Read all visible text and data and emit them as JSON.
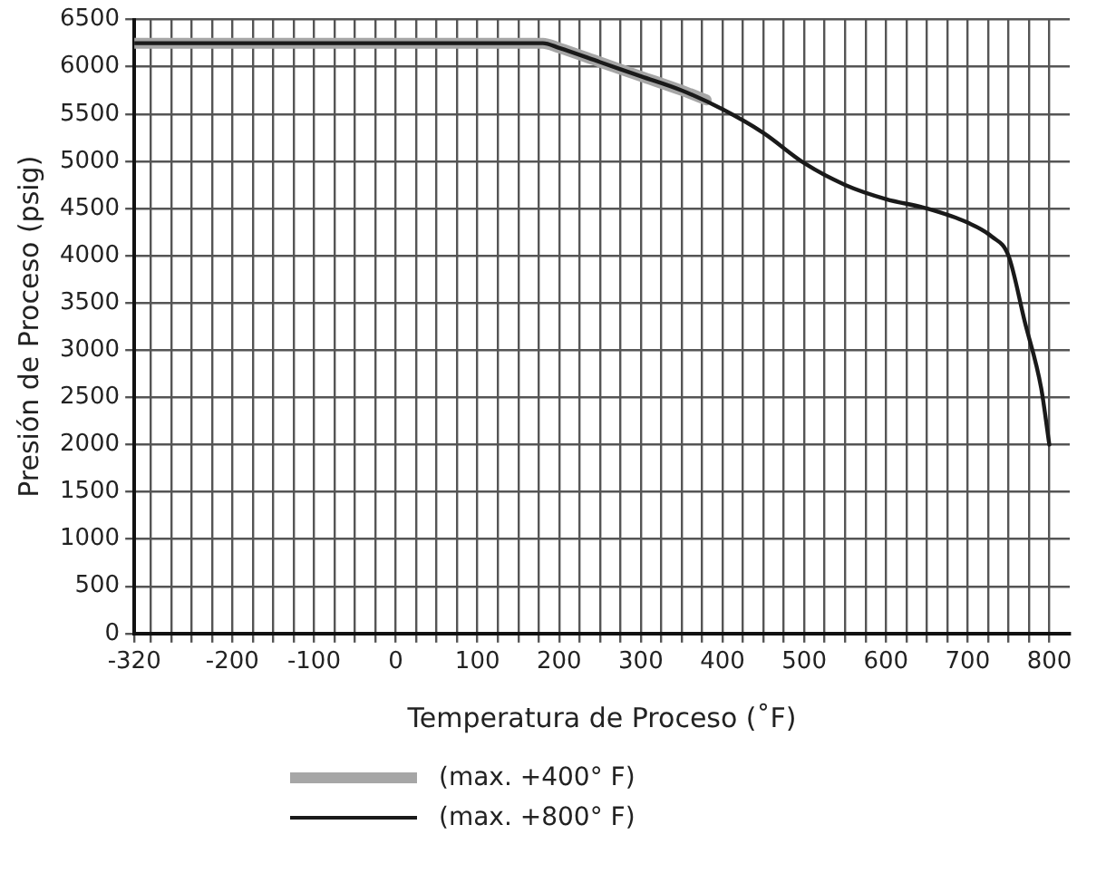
{
  "chart_data": {
    "type": "line",
    "xlabel": "Temperatura de Proceso (˚F)",
    "ylabel": "Presión de Proceso (psig)",
    "xlim": [
      -320,
      825
    ],
    "ylim": [
      0,
      6500
    ],
    "xticks": [
      {
        "value": -320,
        "label": "-320"
      },
      {
        "value": -300,
        "label": null
      },
      {
        "value": -275,
        "label": null
      },
      {
        "value": -250,
        "label": null
      },
      {
        "value": -225,
        "label": null
      },
      -200,
      {
        "value": -175,
        "label": null
      },
      {
        "value": -150,
        "label": null
      },
      {
        "value": -125,
        "label": null
      },
      -100,
      {
        "value": -75,
        "label": null
      },
      {
        "value": -50,
        "label": null
      },
      {
        "value": -25,
        "label": null
      },
      0,
      {
        "value": 25,
        "label": null
      },
      {
        "value": 50,
        "label": null
      },
      {
        "value": 75,
        "label": null
      },
      100,
      {
        "value": 125,
        "label": null
      },
      {
        "value": 150,
        "label": null
      },
      {
        "value": 175,
        "label": null
      },
      200,
      {
        "value": 225,
        "label": null
      },
      {
        "value": 250,
        "label": null
      },
      {
        "value": 275,
        "label": null
      },
      300,
      {
        "value": 325,
        "label": null
      },
      {
        "value": 350,
        "label": null
      },
      {
        "value": 375,
        "label": null
      },
      400,
      {
        "value": 425,
        "label": null
      },
      {
        "value": 450,
        "label": null
      },
      {
        "value": 475,
        "label": null
      },
      500,
      {
        "value": 525,
        "label": null
      },
      {
        "value": 550,
        "label": null
      },
      {
        "value": 575,
        "label": null
      },
      600,
      {
        "value": 625,
        "label": null
      },
      {
        "value": 650,
        "label": null
      },
      {
        "value": 675,
        "label": null
      },
      700,
      {
        "value": 725,
        "label": null
      },
      {
        "value": 750,
        "label": null
      },
      {
        "value": 775,
        "label": null
      },
      800
    ],
    "yticks": [
      0,
      500,
      1000,
      1500,
      2000,
      2500,
      3000,
      3500,
      4000,
      4500,
      5000,
      5500,
      6000,
      6500
    ],
    "grid": true,
    "legend": "bottom",
    "marker": "none",
    "series": [
      {
        "name": "(max. +400° F)",
        "color": "#a6a6a6",
        "x": [
          -320,
          180,
          200,
          250,
          300,
          350,
          380
        ],
        "values": [
          6250,
          6250,
          6200,
          6050,
          5900,
          5750,
          5650
        ]
      },
      {
        "name": "(max. +800° F)",
        "color": "#1a1a1a",
        "x": [
          -320,
          180,
          200,
          250,
          300,
          350,
          400,
          450,
          500,
          550,
          600,
          650,
          700,
          730,
          750,
          770,
          790,
          800
        ],
        "values": [
          6250,
          6250,
          6200,
          6050,
          5900,
          5750,
          5550,
          5300,
          4980,
          4750,
          4600,
          4500,
          4350,
          4200,
          4000,
          3300,
          2600,
          2000
        ]
      }
    ]
  }
}
